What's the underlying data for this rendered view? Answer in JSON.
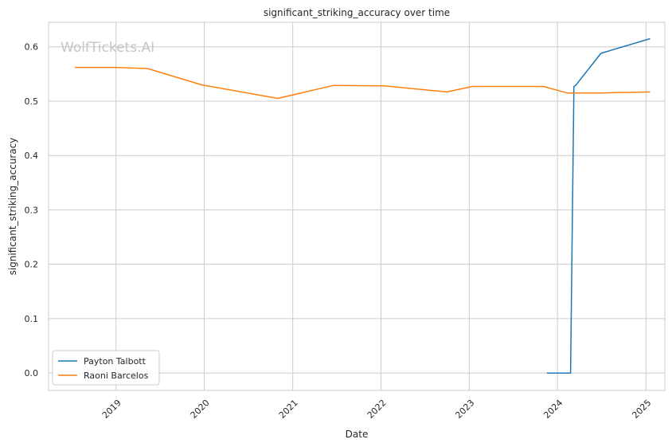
{
  "chart_data": {
    "type": "line",
    "title": "significant_striking_accuracy over time",
    "xlabel": "Date",
    "ylabel": "significant_striking_accuracy",
    "watermark": "WolfTickets.AI",
    "xlim": [
      "2018-03-28",
      "2025-03-20"
    ],
    "ylim": [
      -0.032,
      0.645
    ],
    "x_ticks": [
      "2019-01-01",
      "2020-01-01",
      "2021-01-01",
      "2022-01-01",
      "2023-01-01",
      "2024-01-01",
      "2025-01-01"
    ],
    "x_tick_labels": [
      "2019",
      "2020",
      "2021",
      "2022",
      "2023",
      "2024",
      "2025"
    ],
    "y_ticks": [
      0.0,
      0.1,
      0.2,
      0.3,
      0.4,
      0.5,
      0.6
    ],
    "y_tick_labels": [
      "0.0",
      "0.1",
      "0.2",
      "0.3",
      "0.4",
      "0.5",
      "0.6"
    ],
    "grid": true,
    "legend_position": "lower-left",
    "series": [
      {
        "name": "Payton Talbott",
        "color": "#1f77b4",
        "points": [
          {
            "x": "2023-11-18",
            "y": 0.0
          },
          {
            "x": "2024-02-24",
            "y": 0.0
          },
          {
            "x": "2024-03-09",
            "y": 0.527
          },
          {
            "x": "2024-03-16",
            "y": 0.529
          },
          {
            "x": "2024-06-29",
            "y": 0.588
          },
          {
            "x": "2025-01-18",
            "y": 0.615
          }
        ]
      },
      {
        "name": "Raoni Barcelos",
        "color": "#ff7f0e",
        "points": [
          {
            "x": "2018-07-14",
            "y": 0.562
          },
          {
            "x": "2018-12-29",
            "y": 0.562
          },
          {
            "x": "2019-05-11",
            "y": 0.56
          },
          {
            "x": "2019-12-21",
            "y": 0.53
          },
          {
            "x": "2020-10-31",
            "y": 0.505
          },
          {
            "x": "2021-06-19",
            "y": 0.529
          },
          {
            "x": "2022-01-15",
            "y": 0.528
          },
          {
            "x": "2022-09-30",
            "y": 0.517
          },
          {
            "x": "2023-01-14",
            "y": 0.527
          },
          {
            "x": "2023-11-04",
            "y": 0.527
          },
          {
            "x": "2024-02-10",
            "y": 0.515
          },
          {
            "x": "2024-06-29",
            "y": 0.515
          },
          {
            "x": "2025-01-18",
            "y": 0.517
          }
        ]
      }
    ]
  }
}
